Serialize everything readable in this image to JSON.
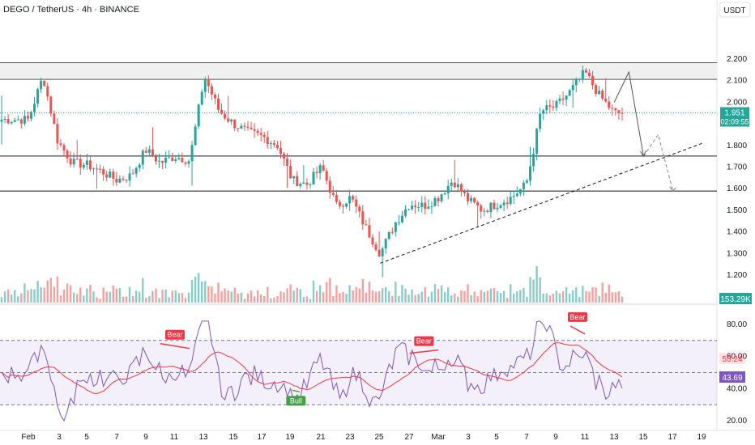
{
  "chart_data": [
    {
      "type": "candlestick",
      "title": "DEGO / TetherUS · 4h · BINANCE",
      "quote_currency": "USDT",
      "y_ticks": [
        "2.200",
        "2.100",
        "2.000",
        "1.900",
        "1.800",
        "1.700",
        "1.600",
        "1.500",
        "1.400",
        "1.300",
        "1.200",
        "1.100"
      ],
      "ylim": [
        1.05,
        2.3
      ],
      "x_ticks": [
        "Feb",
        "3",
        "5",
        "7",
        "9",
        "11",
        "13",
        "15",
        "17",
        "19",
        "21",
        "23",
        "25",
        "27",
        "Mar",
        "3",
        "5",
        "7",
        "9",
        "11",
        "13",
        "15",
        "17",
        "19"
      ],
      "last_price": "1.951",
      "countdown": "02:09:55",
      "volume_label": "153.29K",
      "ohlc_anchors": [
        {
          "x": "Feb",
          "close": 1.92
        },
        {
          "x": "Feb 2",
          "close": 2.12
        },
        {
          "x": "Feb 3",
          "close": 1.82
        },
        {
          "x": "Feb 4",
          "close": 1.72
        },
        {
          "x": "Feb 5",
          "close": 1.71
        },
        {
          "x": "Feb 6",
          "close": 1.68
        },
        {
          "x": "Feb 7",
          "close": 1.64
        },
        {
          "x": "Feb 8",
          "close": 1.66
        },
        {
          "x": "Feb 9",
          "close": 1.78
        },
        {
          "x": "Feb 10",
          "close": 1.72
        },
        {
          "x": "Feb 11",
          "close": 1.75
        },
        {
          "x": "Feb 12",
          "close": 1.73
        },
        {
          "x": "Feb 13",
          "close": 2.12
        },
        {
          "x": "Feb 14",
          "close": 1.96
        },
        {
          "x": "Feb 15",
          "close": 1.9
        },
        {
          "x": "Feb 16",
          "close": 1.86
        },
        {
          "x": "Feb 17",
          "close": 1.84
        },
        {
          "x": "Feb 18",
          "close": 1.8
        },
        {
          "x": "Feb 19",
          "close": 1.64
        },
        {
          "x": "Feb 20",
          "close": 1.62
        },
        {
          "x": "Feb 21",
          "close": 1.7
        },
        {
          "x": "Feb 22",
          "close": 1.52
        },
        {
          "x": "Feb 23",
          "close": 1.56
        },
        {
          "x": "Feb 24",
          "close": 1.42
        },
        {
          "x": "Feb 25",
          "close": 1.3
        },
        {
          "x": "Feb 26",
          "close": 1.44
        },
        {
          "x": "Feb 27",
          "close": 1.53
        },
        {
          "x": "Feb 28",
          "close": 1.52
        },
        {
          "x": "Mar",
          "close": 1.56
        },
        {
          "x": "Mar 2",
          "close": 1.64
        },
        {
          "x": "Mar 3",
          "close": 1.55
        },
        {
          "x": "Mar 4",
          "close": 1.5
        },
        {
          "x": "Mar 5",
          "close": 1.53
        },
        {
          "x": "Mar 6",
          "close": 1.56
        },
        {
          "x": "Mar 7",
          "close": 1.62
        },
        {
          "x": "Mar 7.5",
          "close": 1.78
        },
        {
          "x": "Mar 8",
          "close": 1.96
        },
        {
          "x": "Mar 9",
          "close": 1.98
        },
        {
          "x": "Mar 10",
          "close": 2.05
        },
        {
          "x": "Mar 11",
          "close": 2.14
        },
        {
          "x": "Mar 12",
          "close": 2.03
        },
        {
          "x": "Mar 13",
          "close": 1.95
        }
      ],
      "levels": {
        "supply_zone": [
          2.106,
          2.183
        ],
        "resistance": 1.751,
        "support": 1.589
      },
      "trendline": {
        "start": {
          "x": "Feb 25",
          "y": 1.255
        },
        "end": {
          "x": "Mar 19",
          "y": 1.81
        }
      },
      "projection": [
        {
          "x": "Mar 13",
          "y": 2.0
        },
        {
          "x": "Mar 14",
          "y": 2.14
        },
        {
          "x": "Mar 15",
          "y": 1.75
        }
      ],
      "alt_projection": [
        {
          "x": "Mar 15",
          "y": 1.75
        },
        {
          "x": "Mar 16",
          "y": 1.85
        },
        {
          "x": "Mar 17",
          "y": 1.59
        }
      ]
    },
    {
      "type": "line",
      "name": "RSI",
      "y_ticks": [
        "80.00",
        "60.00",
        "40.00",
        "20.00"
      ],
      "ylim": [
        15,
        88
      ],
      "bands": [
        70,
        50,
        30
      ],
      "rsi_value": "43.69",
      "ma_value": "55.24",
      "colors": {
        "rsi": "#7e57c2",
        "ma": "#f23645",
        "band_fill": "#7e57c2"
      },
      "divergences": [
        {
          "label": "Bear",
          "from": {
            "x": "Feb 10",
            "y": 68
          },
          "to": {
            "x": "Feb 12",
            "y": 65
          },
          "color": "#f23645"
        },
        {
          "label": "Bear",
          "from": {
            "x": "Feb 27",
            "y": 62
          },
          "to": {
            "x": "Mar 1",
            "y": 64
          },
          "color": "#f23645"
        },
        {
          "label": "Bear",
          "from": {
            "x": "Mar 10",
            "y": 79
          },
          "to": {
            "x": "Mar 11",
            "y": 74
          },
          "color": "#f23645"
        },
        {
          "label": "Bull",
          "from": {
            "x": "Feb 19",
            "y": 39
          },
          "to": {
            "x": "Feb 19.5",
            "y": 38
          },
          "color": "#43a047"
        }
      ]
    }
  ],
  "colors": {
    "up": "#26a69a",
    "down": "#ef5350",
    "price_tag": "#26a69a",
    "volume_tag": "#26a69a",
    "rsi_tag": "#7e57c2",
    "ma_tag": "#f23645"
  }
}
